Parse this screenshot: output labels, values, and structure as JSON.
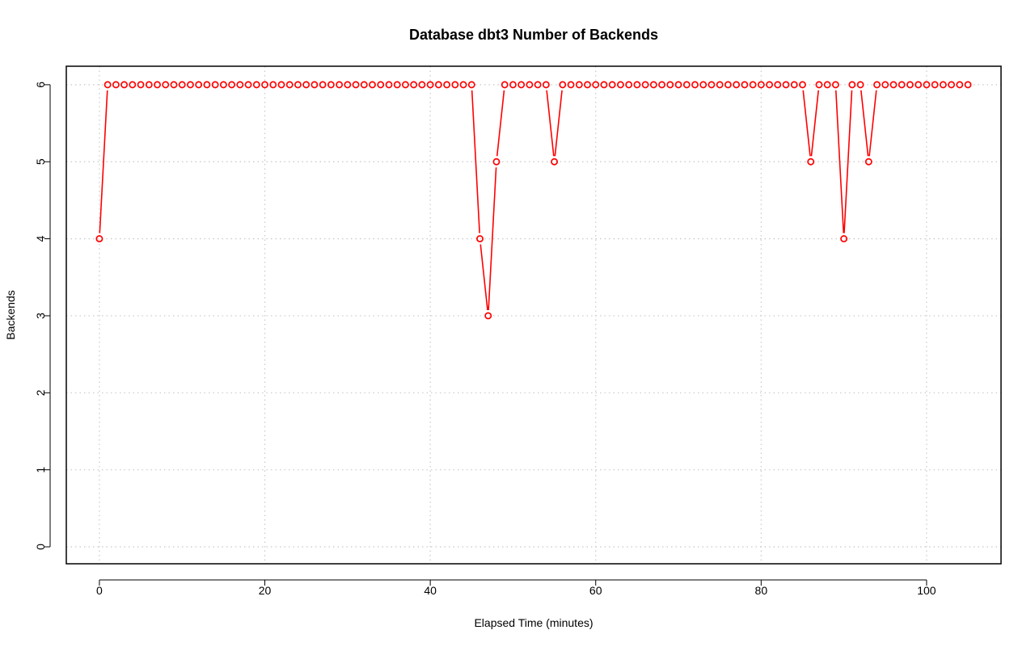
{
  "chart_data": {
    "type": "line",
    "title": "Database dbt3 Number of Backends",
    "xlabel": "Elapsed Time (minutes)",
    "ylabel": "Backends",
    "xlim": [
      -4,
      109
    ],
    "ylim": [
      -0.22,
      6.24
    ],
    "xticks": [
      0,
      20,
      40,
      60,
      80,
      100
    ],
    "yticks": [
      0,
      1,
      2,
      3,
      4,
      5,
      6
    ],
    "grid": true,
    "series": [
      {
        "color": "#ff0000",
        "marker": "circle-open",
        "x": [
          0,
          1,
          2,
          3,
          4,
          5,
          6,
          7,
          8,
          9,
          10,
          11,
          12,
          13,
          14,
          15,
          16,
          17,
          18,
          19,
          20,
          21,
          22,
          23,
          24,
          25,
          26,
          27,
          28,
          29,
          30,
          31,
          32,
          33,
          34,
          35,
          36,
          37,
          38,
          39,
          40,
          41,
          42,
          43,
          44,
          45,
          46,
          47,
          48,
          49,
          50,
          51,
          52,
          53,
          54,
          55,
          56,
          57,
          58,
          59,
          60,
          61,
          62,
          63,
          64,
          65,
          66,
          67,
          68,
          69,
          70,
          71,
          72,
          73,
          74,
          75,
          76,
          77,
          78,
          79,
          80,
          81,
          82,
          83,
          84,
          85,
          86,
          87,
          88,
          89,
          90,
          91,
          92,
          93,
          94,
          95,
          96,
          97,
          98,
          99,
          100,
          101,
          102,
          103,
          104,
          105
        ],
        "y": [
          4,
          6,
          6,
          6,
          6,
          6,
          6,
          6,
          6,
          6,
          6,
          6,
          6,
          6,
          6,
          6,
          6,
          6,
          6,
          6,
          6,
          6,
          6,
          6,
          6,
          6,
          6,
          6,
          6,
          6,
          6,
          6,
          6,
          6,
          6,
          6,
          6,
          6,
          6,
          6,
          6,
          6,
          6,
          6,
          6,
          6,
          4,
          3,
          5,
          6,
          6,
          6,
          6,
          6,
          6,
          5,
          6,
          6,
          6,
          6,
          6,
          6,
          6,
          6,
          6,
          6,
          6,
          6,
          6,
          6,
          6,
          6,
          6,
          6,
          6,
          6,
          6,
          6,
          6,
          6,
          6,
          6,
          6,
          6,
          6,
          6,
          5,
          6,
          6,
          6,
          4,
          6,
          6,
          5,
          6,
          6,
          6,
          6,
          6,
          6,
          6,
          6,
          6,
          6,
          6,
          6
        ]
      }
    ]
  }
}
